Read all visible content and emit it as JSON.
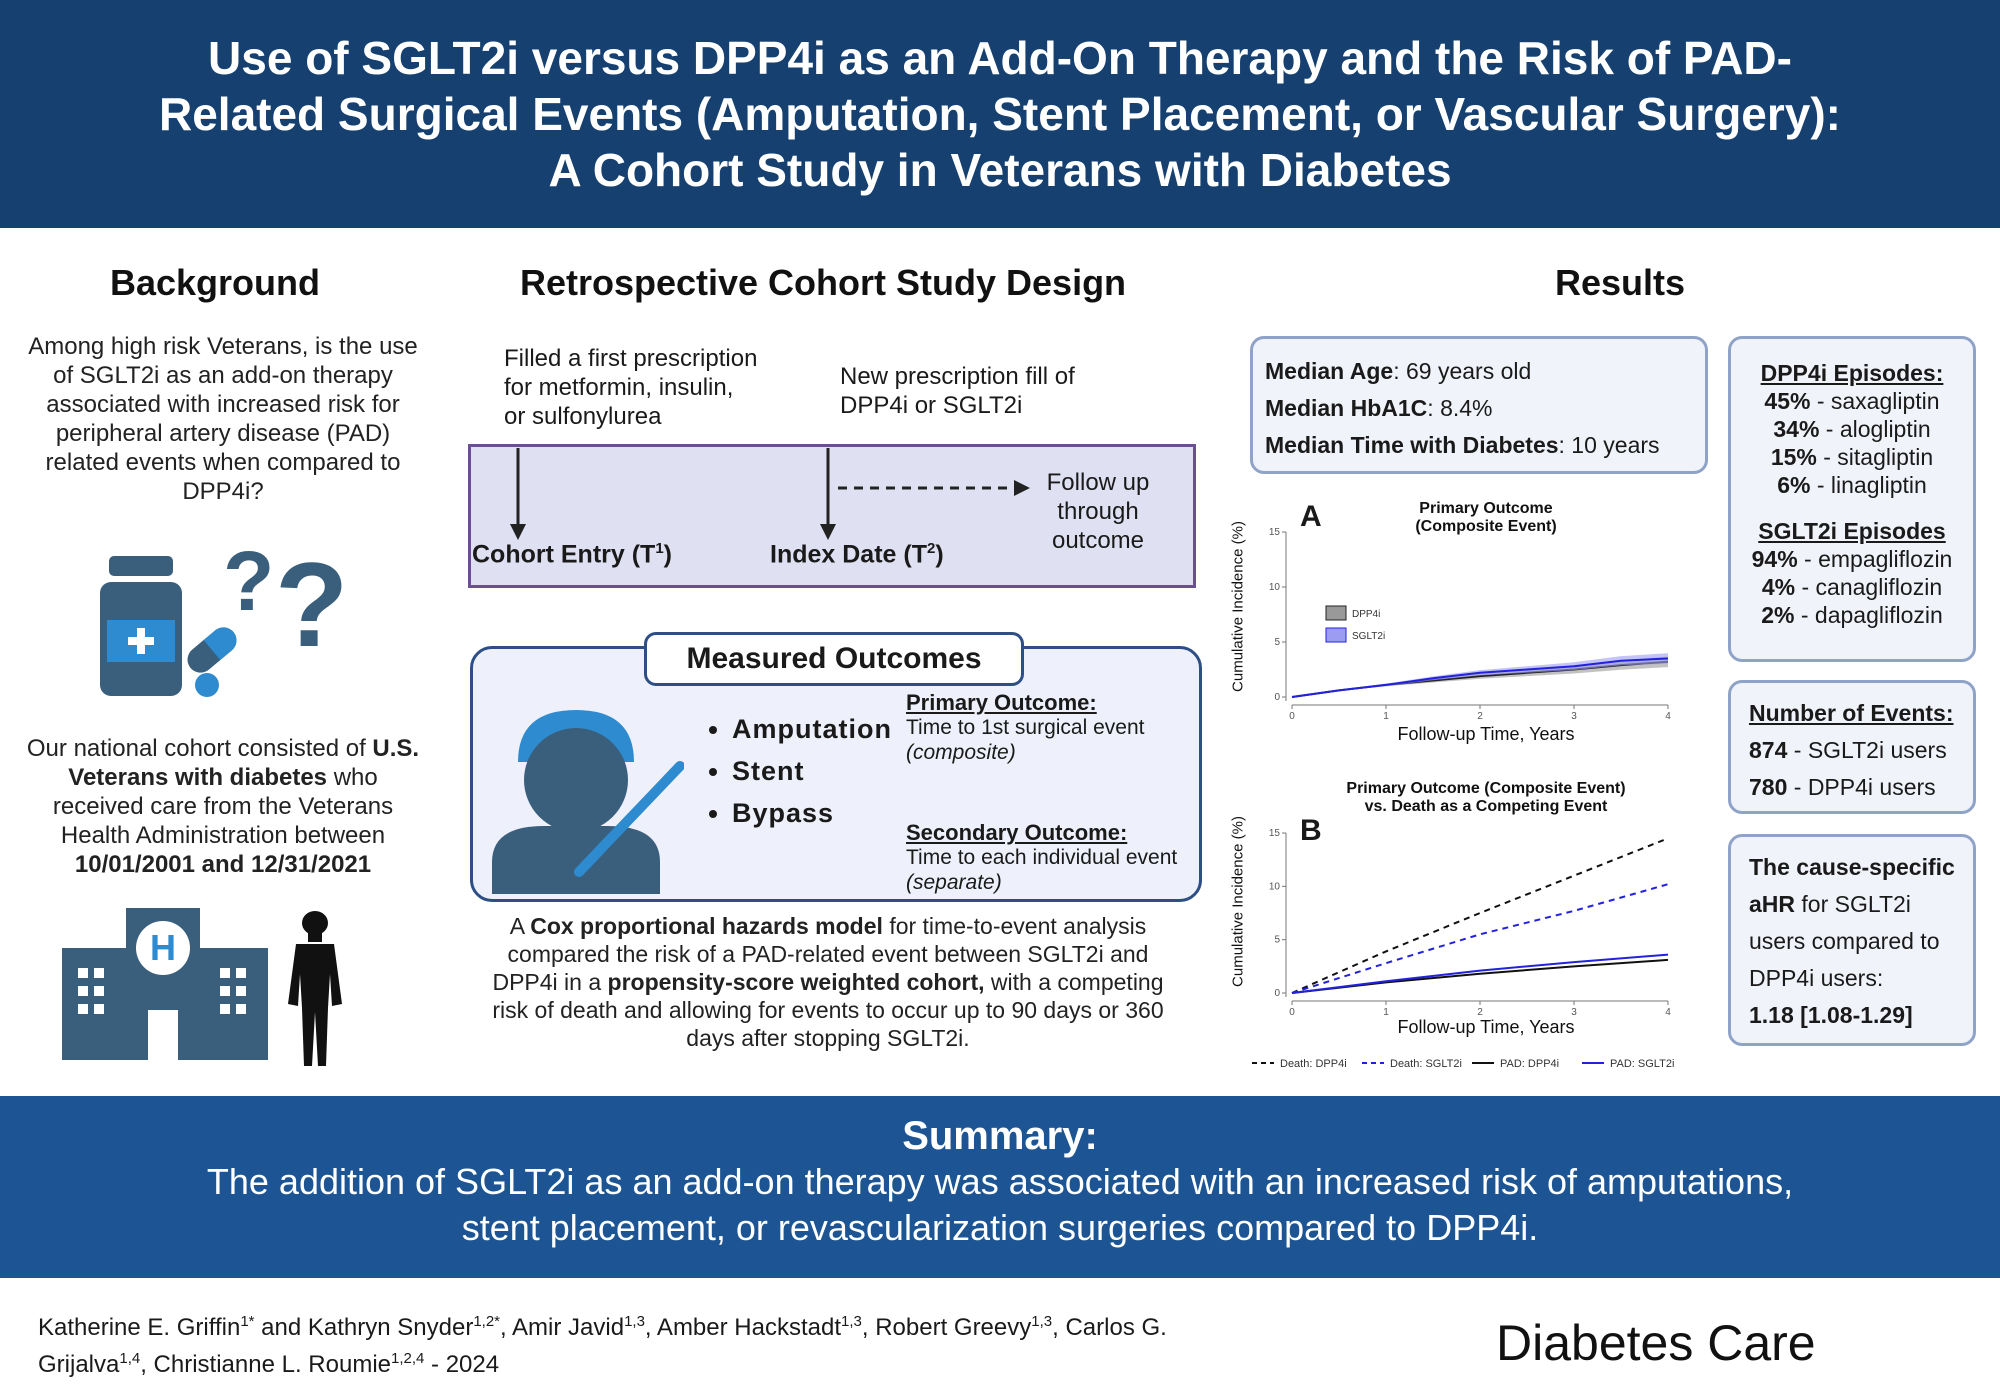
{
  "header": {
    "title_line1": "Use of SGLT2i versus DPP4i as an Add-On Therapy and the Risk of PAD-",
    "title_line2": "Related Surgical Events (Amputation, Stent Placement, or Vascular Surgery):",
    "title_line3": "A Cohort Study in Veterans with Diabetes"
  },
  "background": {
    "title": "Background",
    "question": "Among high risk Veterans, is the use of SGLT2i as an add-on therapy associated with  increased risk for peripheral artery disease (PAD) related events when compared to DPP4i?",
    "cohort_pre": "Our national cohort consisted of",
    "cohort_bold": "U.S. Veterans with diabetes",
    "cohort_mid": "who received care from the Veterans Health Administration between",
    "cohort_dates": "10/01/2001 and 12/31/2021"
  },
  "design": {
    "title": "Retrospective Cohort Study Design",
    "first_rx": "Filled a first prescription for metformin, insulin, or sulfonylurea",
    "new_rx": "New prescription fill of DPP4i or SGLT2i",
    "cohort_entry": "Cohort Entry (T",
    "cohort_entry_sup": "1",
    "index_date": "Index Date (T",
    "index_date_sup": "2",
    "close_paren": ")",
    "followup": "Follow up through outcome"
  },
  "outcomes": {
    "title": "Measured Outcomes",
    "bullets": [
      "Amputation",
      "Stent",
      "Bypass"
    ],
    "primary_title": "Primary Outcome:",
    "primary_text": "Time to 1st surgical event",
    "primary_note": "(composite)",
    "secondary_title": "Secondary Outcome:",
    "secondary_text": "Time to each individual event",
    "secondary_note": "(separate)"
  },
  "methods": {
    "t1": "A",
    "t2": "Cox proportional hazards model",
    "t3": "for time-to-event analysis compared the risk of a PAD-related event between SGLT2i and DPP4i in a",
    "t4": "propensity-score weighted cohort,",
    "t5": "with a competing risk of death and allowing for events to occur up to 90 days or 360 days after stopping SGLT2i."
  },
  "results": {
    "title": "Results",
    "median_age_label": "Median Age",
    "median_age_value": ":  69 years old",
    "median_hba1c_label": "Median HbA1C",
    "median_hba1c_value": ":  8.4%",
    "median_time_label": "Median Time with Diabetes",
    "median_time_value": ":  10 years",
    "dpp4_title": "DPP4i Episodes:",
    "dpp4": [
      {
        "pct": "45%",
        "drug": " - saxagliptin"
      },
      {
        "pct": "34%",
        "drug": " - alogliptin"
      },
      {
        "pct": "15%",
        "drug": " - sitagliptin"
      },
      {
        "pct": "6%",
        "drug": " - linagliptin"
      }
    ],
    "sglt2_title": "SGLT2i Episodes",
    "sglt2": [
      {
        "pct": "94%",
        "drug": " - empagliflozin"
      },
      {
        "pct": "4%",
        "drug": " - canagliflozin"
      },
      {
        "pct": "2%",
        "drug": " - dapagliflozin"
      }
    ],
    "events_title": "Number of Events:",
    "events": [
      {
        "n": "874",
        "group": " - SGLT2i users"
      },
      {
        "n": "780",
        "group": " - DPP4i users"
      }
    ],
    "ahr_pre": "The cause-specific aHR",
    "ahr_mid": "for SGLT2i users compared to DPP4i users:",
    "ahr_value": "1.18  [1.08-1.29]"
  },
  "chart_data": [
    {
      "type": "line",
      "panel_label": "A",
      "title": "Primary Outcome (Composite Event)",
      "xlabel": "Follow-up Time, Years",
      "ylabel": "Cumulative Incidence (%)",
      "xlim": [
        0,
        4
      ],
      "ylim": [
        0,
        15
      ],
      "x_ticks": [
        "0",
        "1",
        "2",
        "3",
        "4"
      ],
      "y_ticks": [
        "0",
        "5",
        "10",
        "15"
      ],
      "legend": [
        "DPP4i",
        "SGLT2i"
      ],
      "series": [
        {
          "name": "DPP4i",
          "color": "#222222",
          "x": [
            0,
            0.5,
            1,
            1.5,
            2,
            2.5,
            3,
            3.5,
            4
          ],
          "y": [
            0,
            0.6,
            1.1,
            1.5,
            1.9,
            2.2,
            2.5,
            2.9,
            3.2
          ]
        },
        {
          "name": "SGLT2i",
          "color": "#2222dd",
          "x": [
            0,
            0.5,
            1,
            1.5,
            2,
            2.5,
            3,
            3.5,
            4
          ],
          "y": [
            0,
            0.6,
            1.1,
            1.7,
            2.2,
            2.5,
            2.8,
            3.3,
            3.5
          ]
        }
      ]
    },
    {
      "type": "line",
      "panel_label": "B",
      "title": "Primary Outcome (Composite Event) vs. Death as a Competing Event",
      "xlabel": "Follow-up Time, Years",
      "ylabel": "Cumulative Incidence (%)",
      "xlim": [
        0,
        4
      ],
      "ylim": [
        0,
        15
      ],
      "x_ticks": [
        "0",
        "1",
        "2",
        "3",
        "4"
      ],
      "y_ticks": [
        "0",
        "5",
        "10",
        "15"
      ],
      "legend": [
        "Death: DPP4i",
        "Death: SGLT2i",
        "PAD: DPP4i",
        "PAD: SGLT2i"
      ],
      "series": [
        {
          "name": "Death: DPP4i",
          "color": "#111111",
          "dash": true,
          "x": [
            0,
            1,
            2,
            3,
            4
          ],
          "y": [
            0,
            3.9,
            7.5,
            11,
            14.5
          ]
        },
        {
          "name": "Death: SGLT2i",
          "color": "#2222dd",
          "dash": true,
          "x": [
            0,
            1,
            2,
            3,
            4
          ],
          "y": [
            0,
            2.8,
            5.5,
            7.7,
            10.2
          ]
        },
        {
          "name": "PAD: DPP4i",
          "color": "#111111",
          "dash": false,
          "x": [
            0,
            1,
            2,
            3,
            4
          ],
          "y": [
            0,
            1.0,
            1.8,
            2.5,
            3.1
          ]
        },
        {
          "name": "PAD: SGLT2i",
          "color": "#2222dd",
          "dash": false,
          "x": [
            0,
            1,
            2,
            3,
            4
          ],
          "y": [
            0,
            1.1,
            2.1,
            2.9,
            3.6
          ]
        }
      ]
    }
  ],
  "summary": {
    "title": "Summary:",
    "line1": "The addition of SGLT2i as an add-on therapy was associated with an increased risk of amputations,",
    "line2": "stent placement, or revascularization surgeries compared to DPP4i."
  },
  "footer": {
    "a1": "Katherine E. Griffin",
    "a1s": "1*",
    "a2": " and Kathryn Snyder",
    "a2s": "1,2*",
    "a3": ", Amir Javid",
    "a3s": "1,3",
    "a4": ", Amber Hackstadt",
    "a4s": "1,3",
    "a5": ", Robert Greevy",
    "a5s": "1,3",
    "a6": ", Carlos G. Grijalva",
    "a6s": "1,4",
    "a7": ", Christianne L. Roumie",
    "a7s": "1,2,4",
    "a8": "  - 2024",
    "journal": "Diabetes Care"
  },
  "colors": {
    "header": "#15406f",
    "summary": "#1d5594",
    "icon": "#3a5f7d",
    "accent": "#2e8bd0"
  }
}
